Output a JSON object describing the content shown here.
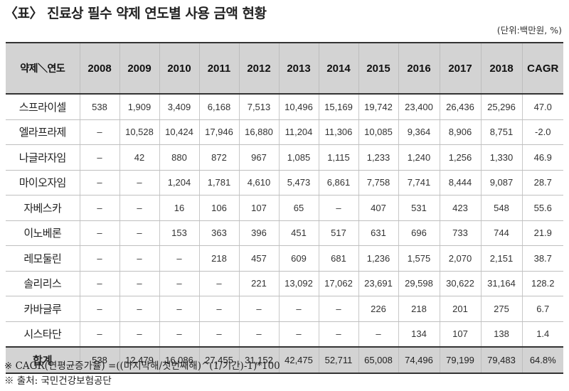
{
  "title": "〈표〉 진료상 필수 약제 연도별 사용 금액 현황",
  "unit": "(단위:백만원, %)",
  "table": {
    "headers": [
      "약제＼연도",
      "2008",
      "2009",
      "2010",
      "2011",
      "2012",
      "2013",
      "2014",
      "2015",
      "2016",
      "2017",
      "2018",
      "CAGR"
    ],
    "rows": [
      [
        "스프라이셀",
        "538",
        "1,909",
        "3,409",
        "6,168",
        "7,513",
        "10,496",
        "15,169",
        "19,742",
        "23,400",
        "26,436",
        "25,296",
        "47.0"
      ],
      [
        "엘라프라제",
        "–",
        "10,528",
        "10,424",
        "17,946",
        "16,880",
        "11,204",
        "11,306",
        "10,085",
        "9,364",
        "8,906",
        "8,751",
        "-2.0"
      ],
      [
        "나글라자임",
        "–",
        "42",
        "880",
        "872",
        "967",
        "1,085",
        "1,115",
        "1,233",
        "1,240",
        "1,256",
        "1,330",
        "46.9"
      ],
      [
        "마이오자임",
        "–",
        "–",
        "1,204",
        "1,781",
        "4,610",
        "5,473",
        "6,861",
        "7,758",
        "7,741",
        "8,444",
        "9,087",
        "28.7"
      ],
      [
        "자베스카",
        "–",
        "–",
        "16",
        "106",
        "107",
        "65",
        "–",
        "407",
        "531",
        "423",
        "548",
        "55.6"
      ],
      [
        "이노베론",
        "–",
        "–",
        "153",
        "363",
        "396",
        "451",
        "517",
        "631",
        "696",
        "733",
        "744",
        "21.9"
      ],
      [
        "레모둘린",
        "–",
        "–",
        "–",
        "218",
        "457",
        "609",
        "681",
        "1,236",
        "1,575",
        "2,070",
        "2,151",
        "38.7"
      ],
      [
        "솔리리스",
        "–",
        "–",
        "–",
        "–",
        "221",
        "13,092",
        "17,062",
        "23,691",
        "29,598",
        "30,622",
        "31,164",
        "128.2"
      ],
      [
        "카바글루",
        "–",
        "–",
        "–",
        "–",
        "–",
        "–",
        "–",
        "226",
        "218",
        "201",
        "275",
        "6.7"
      ],
      [
        "시스타단",
        "–",
        "–",
        "–",
        "–",
        "–",
        "–",
        "–",
        "–",
        "134",
        "107",
        "138",
        "1.4"
      ]
    ],
    "total": [
      "합계",
      "538",
      "12,479",
      "16,086",
      "27,455",
      "31,152",
      "42,475",
      "52,711",
      "65,008",
      "74,496",
      "79,199",
      "79,483",
      "64.8%"
    ]
  },
  "notes": [
    "※ CAGR(연평균증가율) =((마지막해/첫번째해)^(1/기간)-1)*100",
    "※ 출처: 국민건강보험공단"
  ]
}
